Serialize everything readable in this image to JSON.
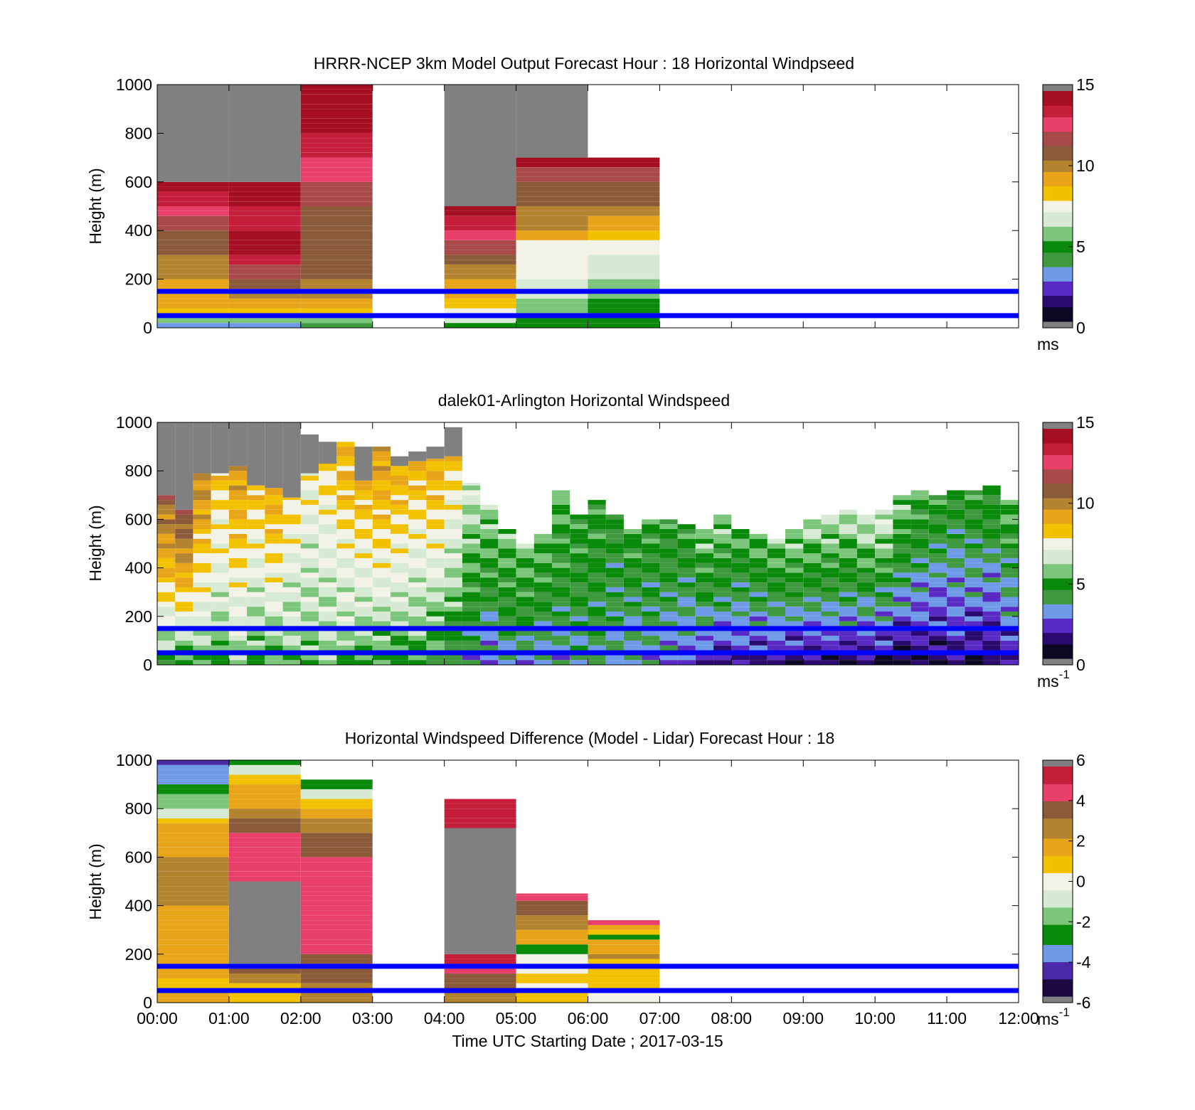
{
  "palettes": {
    "speed": [
      "#0c0824",
      "#2a0a6e",
      "#5a2bc4",
      "#6f9ae8",
      "#3f9a3f",
      "#0a8a0a",
      "#7cc67c",
      "#d7ead3",
      "#f2f2e6",
      "#f2c200",
      "#e8a51a",
      "#b3832f",
      "#8a5a3a",
      "#a84a4a",
      "#e8406a",
      "#c41e3a",
      "#a50f24"
    ],
    "diff": [
      "#1a0a40",
      "#4a2aa8",
      "#6f9ae8",
      "#0a8a0a",
      "#7cc67c",
      "#d7ead3",
      "#f2f2e6",
      "#f2c200",
      "#e8a51a",
      "#b3832f",
      "#8a5a3a",
      "#e8406a",
      "#c41e3a"
    ],
    "fill_gray": "#808080",
    "line_color": "#0000ff"
  },
  "common": {
    "x_ticks": [
      "00:00",
      "01:00",
      "02:00",
      "03:00",
      "04:00",
      "05:00",
      "06:00",
      "07:00",
      "08:00",
      "09:00",
      "10:00",
      "11:00",
      "12:00"
    ],
    "y_ticks": [
      "0",
      "200",
      "400",
      "600",
      "800",
      "1000"
    ],
    "y_label": "Height (m)",
    "x_label": "Time UTC  Starting Date ; 2017-03-15"
  },
  "chart_data": [
    {
      "type": "heatmap",
      "title": "HRRR-NCEP 3km Model Output   Forecast Hour : 18 Horizontal Windpseed",
      "ylabel": "Height (m)",
      "xlim": [
        "00:00",
        "12:00"
      ],
      "ylim": [
        0,
        1000
      ],
      "colorbar": {
        "ticks": [
          "0",
          "5",
          "10",
          "15"
        ],
        "range": [
          0,
          15
        ],
        "unit": "ms",
        "unit_sup": ""
      },
      "horizontal_lines_m": [
        50,
        150
      ],
      "columns": [
        {
          "hour": 0,
          "top": 600,
          "gray_to": 1000,
          "levels": [
            [
              0,
              3.5
            ],
            [
              20,
              5.8
            ],
            [
              40,
              7
            ],
            [
              60,
              8.5
            ],
            [
              80,
              9
            ],
            [
              100,
              9.3
            ],
            [
              150,
              9.5
            ],
            [
              200,
              9.8
            ],
            [
              250,
              10.2
            ],
            [
              300,
              10.8
            ],
            [
              350,
              11.3
            ],
            [
              400,
              11.8
            ],
            [
              450,
              13
            ],
            [
              500,
              14
            ],
            [
              550,
              15.5
            ]
          ]
        },
        {
          "hour": 1,
          "top": 600,
          "gray_to": 1000,
          "levels": [
            [
              0,
              3.5
            ],
            [
              20,
              5.5
            ],
            [
              40,
              8.5
            ],
            [
              80,
              9.3
            ],
            [
              120,
              10.2
            ],
            [
              160,
              11.2
            ],
            [
              200,
              11.8
            ],
            [
              250,
              14
            ],
            [
              300,
              14.2
            ],
            [
              400,
              14.1
            ],
            [
              500,
              15
            ],
            [
              550,
              16
            ]
          ]
        },
        {
          "hour": 2,
          "top": 1000,
          "gray_to": null,
          "levels": [
            [
              0,
              4
            ],
            [
              20,
              5.5
            ],
            [
              40,
              8
            ],
            [
              80,
              9.2
            ],
            [
              120,
              10.5
            ],
            [
              200,
              10.8
            ],
            [
              300,
              11
            ],
            [
              400,
              11.2
            ],
            [
              500,
              12
            ],
            [
              600,
              13.2
            ],
            [
              700,
              14
            ],
            [
              800,
              15.2
            ],
            [
              900,
              15.8
            ]
          ]
        },
        {
          "hour": 4,
          "top": 500,
          "gray_to": 1000,
          "levels": [
            [
              0,
              5
            ],
            [
              20,
              6.5
            ],
            [
              40,
              7.2
            ],
            [
              80,
              8.8
            ],
            [
              120,
              9.2
            ],
            [
              200,
              10
            ],
            [
              250,
              10.8
            ],
            [
              300,
              12
            ],
            [
              350,
              13
            ],
            [
              400,
              14
            ],
            [
              450,
              15.6
            ]
          ]
        },
        {
          "hour": 5,
          "top": 700,
          "gray_to": 1000,
          "levels": [
            [
              0,
              5
            ],
            [
              40,
              5.8
            ],
            [
              120,
              6.5
            ],
            [
              200,
              7.2
            ],
            [
              300,
              7.8
            ],
            [
              350,
              9.6
            ],
            [
              400,
              9.8
            ],
            [
              450,
              10.4
            ],
            [
              500,
              11
            ],
            [
              600,
              11.8
            ],
            [
              650,
              15.3
            ]
          ]
        },
        {
          "hour": 6,
          "top": 700,
          "gray_to": null,
          "levels": [
            [
              0,
              4.8
            ],
            [
              40,
              5
            ],
            [
              120,
              5.8
            ],
            [
              200,
              6.2
            ],
            [
              250,
              6.6
            ],
            [
              300,
              7.1
            ],
            [
              350,
              8
            ],
            [
              400,
              9.6
            ],
            [
              450,
              10.4
            ],
            [
              500,
              11
            ],
            [
              600,
              11.8
            ],
            [
              650,
              15.8
            ]
          ]
        }
      ]
    },
    {
      "type": "heatmap",
      "title": "dalek01-Arlington  Horizontal Windspeed",
      "ylabel": "Height (m)",
      "xlim": [
        "00:00",
        "12:00"
      ],
      "ylim": [
        0,
        1000
      ],
      "colorbar": {
        "ticks": [
          "0",
          "5",
          "10",
          "15"
        ],
        "range": [
          0,
          15
        ],
        "unit": "ms",
        "unit_sup": "-1"
      },
      "horizontal_lines_m": [
        50,
        150
      ],
      "profile_hours": [
        0,
        0.25,
        0.5,
        0.75,
        1,
        1.25,
        1.5,
        1.75,
        2,
        2.25,
        2.5,
        2.75,
        3,
        3.25,
        3.5,
        3.75,
        4,
        4.25,
        4.5,
        4.75,
        5,
        5.25,
        5.5,
        5.75,
        6,
        6.25,
        6.5,
        6.75,
        7,
        7.25,
        7.5,
        7.75,
        8,
        8.25,
        8.5,
        8.75,
        9,
        9.25,
        9.5,
        9.75,
        10,
        10.25,
        10.5,
        10.75,
        11,
        11.25,
        11.5,
        11.75
      ],
      "profile_tops_m": [
        700,
        640,
        790,
        790,
        820,
        740,
        730,
        690,
        790,
        830,
        920,
        760,
        900,
        820,
        840,
        850,
        860,
        750,
        660,
        560,
        500,
        540,
        720,
        620,
        680,
        620,
        560,
        600,
        600,
        580,
        560,
        620,
        560,
        540,
        520,
        560,
        600,
        620,
        640,
        620,
        640,
        700,
        720,
        700,
        720,
        720,
        740,
        680
      ],
      "profile_gray_to_m": [
        1000,
        1000,
        1000,
        1000,
        1000,
        1000,
        1000,
        1000,
        950,
        920,
        900,
        900,
        880,
        860,
        880,
        900,
        980,
        0,
        0,
        0,
        0,
        0,
        0,
        0,
        0,
        0,
        0,
        0,
        0,
        0,
        0,
        0,
        0,
        0,
        0,
        0,
        0,
        0,
        0,
        0,
        0,
        0,
        0,
        0,
        0,
        0,
        0,
        0
      ],
      "profile_surface_ms": [
        5,
        4.8,
        5.2,
        5,
        5.5,
        5.2,
        5.3,
        5.4,
        5.6,
        5.5,
        5.4,
        5,
        5,
        4.8,
        4.6,
        4.5,
        3.8,
        3,
        2.5,
        2.8,
        3,
        3.4,
        3.2,
        3.5,
        3.6,
        3.4,
        3.1,
        3,
        2.6,
        2.2,
        1.9,
        1.7,
        1.5,
        1.4,
        1.3,
        1.2,
        1.1,
        1,
        1,
        0.9,
        0.8,
        0.8,
        0.8,
        0.8,
        1,
        1,
        1.2,
        1.4
      ],
      "profile_aloft_ms": [
        11,
        11.5,
        10,
        8.5,
        9.5,
        8.5,
        9,
        8,
        7.5,
        8,
        9,
        9,
        9.5,
        9,
        9,
        9,
        8.5,
        7,
        6,
        6,
        6,
        5.5,
        5.5,
        5,
        5,
        4.5,
        5,
        5,
        5,
        5,
        6,
        6,
        5.5,
        5.8,
        6,
        6.2,
        6.4,
        6.5,
        6.6,
        6.8,
        7,
        6,
        5.5,
        5,
        5,
        5,
        5,
        5.5
      ]
    },
    {
      "type": "heatmap",
      "title": "Horizontal Windspeed Difference (Model - Lidar) Forecast Hour : 18",
      "ylabel": "Height (m)",
      "xlabel": "Time UTC  Starting Date ; 2017-03-15",
      "xlim": [
        "00:00",
        "12:00"
      ],
      "ylim": [
        0,
        1000
      ],
      "colorbar": {
        "ticks": [
          "-6",
          "-4",
          "-2",
          "0",
          "2",
          "4",
          "6"
        ],
        "range": [
          -6,
          6
        ],
        "unit": "ms",
        "unit_sup": "-1"
      },
      "horizontal_lines_m": [
        50,
        150
      ],
      "columns": [
        {
          "hour": 0,
          "top": 1000,
          "gray_from": null,
          "gray_to": null,
          "levels": [
            [
              0,
              1.5
            ],
            [
              40,
              1.2
            ],
            [
              100,
              1.5
            ],
            [
              200,
              1.5
            ],
            [
              300,
              2.3
            ],
            [
              400,
              2.6
            ],
            [
              500,
              2.8
            ],
            [
              600,
              2.3
            ],
            [
              700,
              1.4
            ],
            [
              740,
              0.5
            ],
            [
              760,
              -1
            ],
            [
              800,
              -2.2
            ],
            [
              860,
              -3
            ],
            [
              900,
              -3.8
            ],
            [
              940,
              -4
            ],
            [
              980,
              -4.3
            ]
          ]
        },
        {
          "hour": 1,
          "top": 1000,
          "gray_from": 160,
          "gray_to": 500,
          "levels": [
            [
              0,
              1.3
            ],
            [
              30,
              1.1
            ],
            [
              80,
              2.6
            ],
            [
              120,
              3.8
            ],
            [
              160,
              3.9
            ],
            [
              500,
              4.2
            ],
            [
              560,
              4.6
            ],
            [
              620,
              4.4
            ],
            [
              700,
              3.8
            ],
            [
              760,
              2.4
            ],
            [
              800,
              2.2
            ],
            [
              860,
              1.6
            ],
            [
              900,
              0.5
            ],
            [
              940,
              -1
            ],
            [
              970,
              -2.5
            ]
          ]
        },
        {
          "hour": 2,
          "top": 920,
          "gray_from": null,
          "gray_to": null,
          "levels": [
            [
              0,
              2.4
            ],
            [
              80,
              3.9
            ],
            [
              200,
              4.8
            ],
            [
              300,
              4.6
            ],
            [
              400,
              4.5
            ],
            [
              500,
              4.6
            ],
            [
              600,
              3.9
            ],
            [
              700,
              2.6
            ],
            [
              760,
              1.8
            ],
            [
              800,
              1.2
            ],
            [
              840,
              -1
            ],
            [
              870,
              -3
            ]
          ]
        },
        {
          "hour": 4,
          "top": 840,
          "gray_from": 200,
          "gray_to": 720,
          "levels": [
            [
              0,
              2.5
            ],
            [
              40,
              3.9
            ],
            [
              80,
              3.8
            ],
            [
              120,
              4.5
            ],
            [
              160,
              5.3
            ],
            [
              760,
              6.5
            ]
          ]
        },
        {
          "hour": 5,
          "top": 450,
          "gray_from": null,
          "gray_to": null,
          "levels": [
            [
              0,
              1
            ],
            [
              40,
              0.2
            ],
            [
              80,
              1.2
            ],
            [
              120,
              0.2
            ],
            [
              200,
              -3
            ],
            [
              240,
              1.6
            ],
            [
              300,
              2.6
            ],
            [
              360,
              3.3
            ],
            [
              420,
              4.6
            ]
          ]
        },
        {
          "hour": 6,
          "top": 340,
          "gray_from": null,
          "gray_to": null,
          "levels": [
            [
              0,
              -0.3
            ],
            [
              30,
              1.2
            ],
            [
              60,
              0.5
            ],
            [
              180,
              2.6
            ],
            [
              200,
              2
            ],
            [
              260,
              -3
            ],
            [
              280,
              0.8
            ],
            [
              300,
              1.9
            ],
            [
              320,
              4.6
            ]
          ]
        }
      ]
    }
  ]
}
